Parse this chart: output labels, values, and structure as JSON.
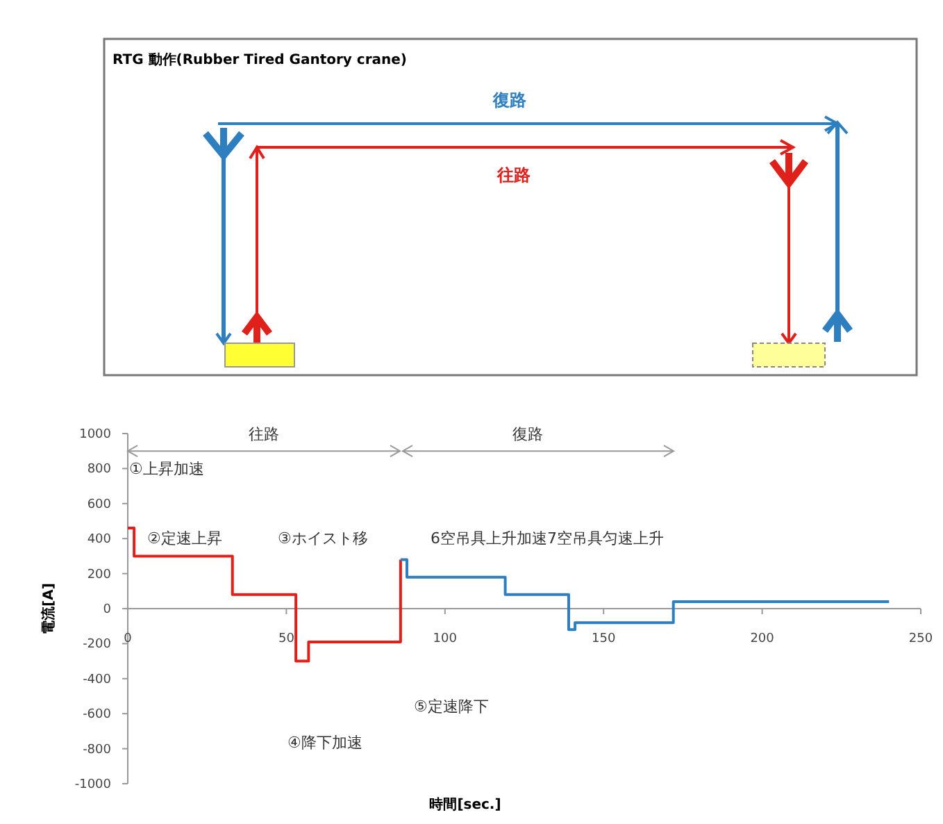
{
  "chart_data": {
    "type": "step",
    "xlabel": "時間[sec.]",
    "ylabel": "電流[A]",
    "xlim": [
      0,
      250
    ],
    "xticks": [
      0,
      50,
      100,
      150,
      200,
      250
    ],
    "ylim": [
      -1000,
      1000
    ],
    "yticks": [
      -1000,
      -800,
      -600,
      -400,
      -200,
      0,
      200,
      400,
      600,
      800,
      1000
    ],
    "marker": "none",
    "line_style": "solid",
    "series": [
      {
        "color": "#e0201b",
        "x": [
          0,
          2,
          33,
          53,
          57,
          86
        ],
        "values": [
          460,
          300,
          80,
          -300,
          -190,
          280
        ]
      },
      {
        "color": "#2e7fc0",
        "x": [
          86,
          88,
          119,
          139,
          141,
          172,
          240
        ],
        "values": [
          280,
          180,
          80,
          -120,
          -80,
          40,
          40
        ]
      }
    ],
    "annotations": [
      "RTG 動作(Rubber Tired Gantory crane)",
      "復路",
      "往路",
      "往路",
      "復路",
      "①上昇加速",
      "②定速上昇",
      "③ホイスト移",
      "6空吊具上升加速7空吊具匀速上升",
      "⑤定速降下",
      "④降下加速"
    ]
  }
}
